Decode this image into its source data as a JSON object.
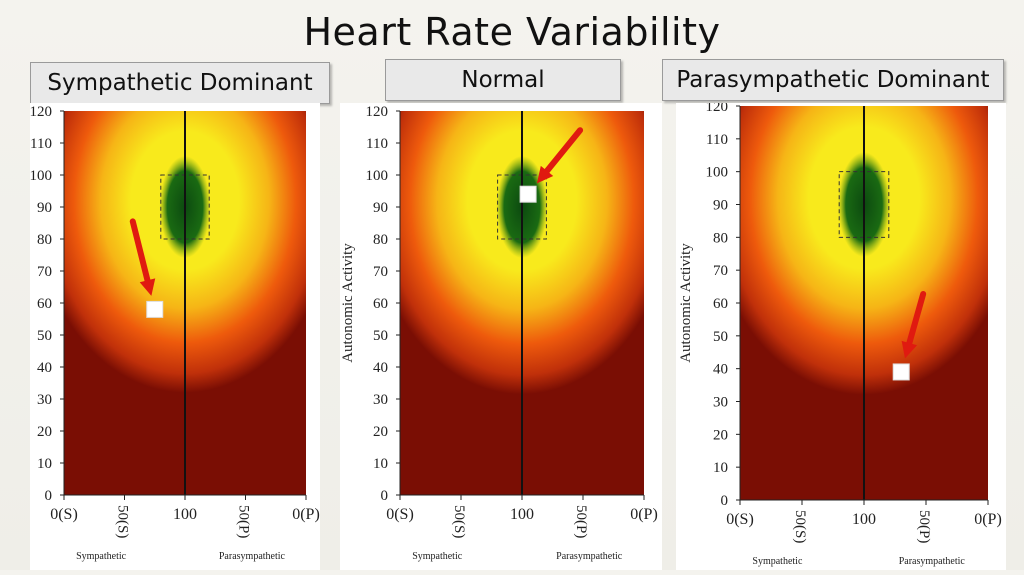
{
  "main_title": "Heart Rate Variability",
  "panels": [
    {
      "title": "Sympathetic Dominant",
      "ylabel": ""
    },
    {
      "title": "Normal",
      "ylabel": "Autonomic Activity"
    },
    {
      "title": "Parasympathetic Dominant",
      "ylabel": "Autonomic Activity"
    }
  ],
  "colors": {
    "dark_red": "#7a0e04",
    "orange": "#ee5a0c",
    "yellow": "#f8ea1c",
    "green": "#0c4a10",
    "marker": "#ffffff",
    "arrow": "#e01a10"
  },
  "chart_data": [
    {
      "type": "scatter",
      "title": "Sympathetic Dominant",
      "ylabel": "",
      "xticks": [
        "0(S)",
        "50(S)",
        "100",
        "50(P)",
        "0(P)"
      ],
      "xside_labels": [
        "Sympathetic",
        "Parasympathetic"
      ],
      "ylim": [
        0,
        120
      ],
      "yticks": [
        0,
        10,
        20,
        30,
        40,
        50,
        60,
        70,
        80,
        90,
        100,
        110,
        120
      ],
      "center_line_x": "100",
      "normal_zone_y": [
        80,
        100
      ],
      "point": {
        "x": "between 50(S) and 100",
        "x_value": 75,
        "y": 58
      },
      "arrow": true
    },
    {
      "type": "scatter",
      "title": "Normal",
      "ylabel": "Autonomic Activity",
      "xticks": [
        "0(S)",
        "50(S)",
        "100",
        "50(P)",
        "0(P)"
      ],
      "xside_labels": [
        "Sympathetic",
        "Parasympathetic"
      ],
      "ylim": [
        0,
        120
      ],
      "yticks": [
        0,
        10,
        20,
        30,
        40,
        50,
        60,
        70,
        80,
        90,
        100,
        110,
        120
      ],
      "center_line_x": "100",
      "normal_zone_y": [
        80,
        100
      ],
      "point": {
        "x": "slightly right of 100",
        "x_value": 105,
        "y": 94
      },
      "arrow": true
    },
    {
      "type": "scatter",
      "title": "Parasympathetic Dominant",
      "ylabel": "Autonomic Activity",
      "xticks": [
        "0(S)",
        "50(S)",
        "100",
        "50(P)",
        "0(P)"
      ],
      "xside_labels": [
        "Sympathetic",
        "Parasympathetic"
      ],
      "ylim": [
        0,
        120
      ],
      "yticks": [
        0,
        10,
        20,
        30,
        40,
        50,
        60,
        70,
        80,
        90,
        100,
        110,
        120
      ],
      "center_line_x": "100",
      "normal_zone_y": [
        80,
        100
      ],
      "point": {
        "x": "between 100 and 50(P)",
        "x_value": 130,
        "y": 39
      },
      "arrow": true
    }
  ]
}
